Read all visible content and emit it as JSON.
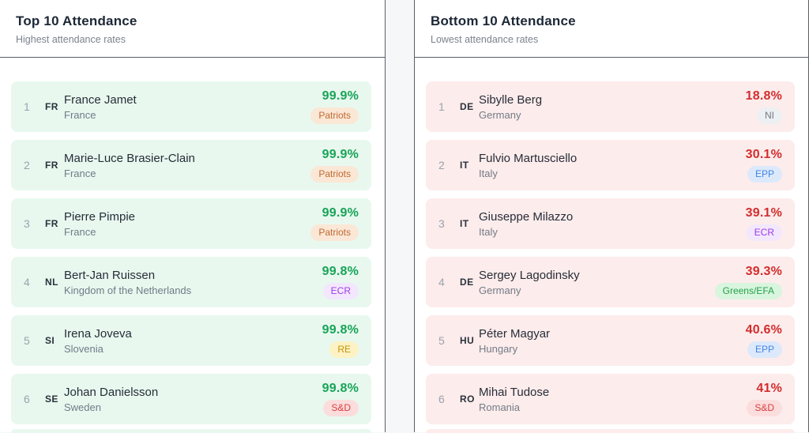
{
  "panels": [
    {
      "title": "Top 10 Attendance",
      "subtitle": "Highest attendance rates",
      "tone": "positive",
      "rows": [
        {
          "rank": "1",
          "code": "FR",
          "name": "France Jamet",
          "country": "France",
          "value": "99.9%",
          "badge": "Patriots"
        },
        {
          "rank": "2",
          "code": "FR",
          "name": "Marie-Luce Brasier-Clain",
          "country": "France",
          "value": "99.9%",
          "badge": "Patriots"
        },
        {
          "rank": "3",
          "code": "FR",
          "name": "Pierre Pimpie",
          "country": "France",
          "value": "99.9%",
          "badge": "Patriots"
        },
        {
          "rank": "4",
          "code": "NL",
          "name": "Bert-Jan Ruissen",
          "country": "Kingdom of the Netherlands",
          "value": "99.8%",
          "badge": "ECR"
        },
        {
          "rank": "5",
          "code": "SI",
          "name": "Irena Joveva",
          "country": "Slovenia",
          "value": "99.8%",
          "badge": "RE"
        },
        {
          "rank": "6",
          "code": "SE",
          "name": "Johan Danielsson",
          "country": "Sweden",
          "value": "99.8%",
          "badge": "S&D"
        }
      ]
    },
    {
      "title": "Bottom 10 Attendance",
      "subtitle": "Lowest attendance rates",
      "tone": "negative",
      "rows": [
        {
          "rank": "1",
          "code": "DE",
          "name": "Sibylle Berg",
          "country": "Germany",
          "value": "18.8%",
          "badge": "NI"
        },
        {
          "rank": "2",
          "code": "IT",
          "name": "Fulvio Martusciello",
          "country": "Italy",
          "value": "30.1%",
          "badge": "EPP"
        },
        {
          "rank": "3",
          "code": "IT",
          "name": "Giuseppe Milazzo",
          "country": "Italy",
          "value": "39.1%",
          "badge": "ECR"
        },
        {
          "rank": "4",
          "code": "DE",
          "name": "Sergey Lagodinsky",
          "country": "Germany",
          "value": "39.3%",
          "badge": "Greens/EFA"
        },
        {
          "rank": "5",
          "code": "HU",
          "name": "Péter Magyar",
          "country": "Hungary",
          "value": "40.6%",
          "badge": "EPP"
        },
        {
          "rank": "6",
          "code": "RO",
          "name": "Mihai Tudose",
          "country": "Romania",
          "value": "41%",
          "badge": "S&D"
        }
      ]
    }
  ],
  "badge_styles": {
    "Patriots": {
      "bg": "#fbe7d5",
      "fg": "#bf6a33"
    },
    "ECR": {
      "bg": "#f3e7fd",
      "fg": "#9b3ceb"
    },
    "RE": {
      "bg": "#fdf2c3",
      "fg": "#c8930c"
    },
    "S&D": {
      "bg": "#fcdddd",
      "fg": "#dd3d3d"
    },
    "NI": {
      "bg": "#edf0f3",
      "fg": "#707a86"
    },
    "EPP": {
      "bg": "#dce9fb",
      "fg": "#4285e8"
    },
    "Greens/EFA": {
      "bg": "#d8f5de",
      "fg": "#27a04b"
    }
  },
  "colors": {
    "row_bg": {
      "positive": "#e8f8ef",
      "negative": "#fdecec"
    },
    "value": {
      "positive": "#18a457",
      "negative": "#d32d2d"
    }
  }
}
